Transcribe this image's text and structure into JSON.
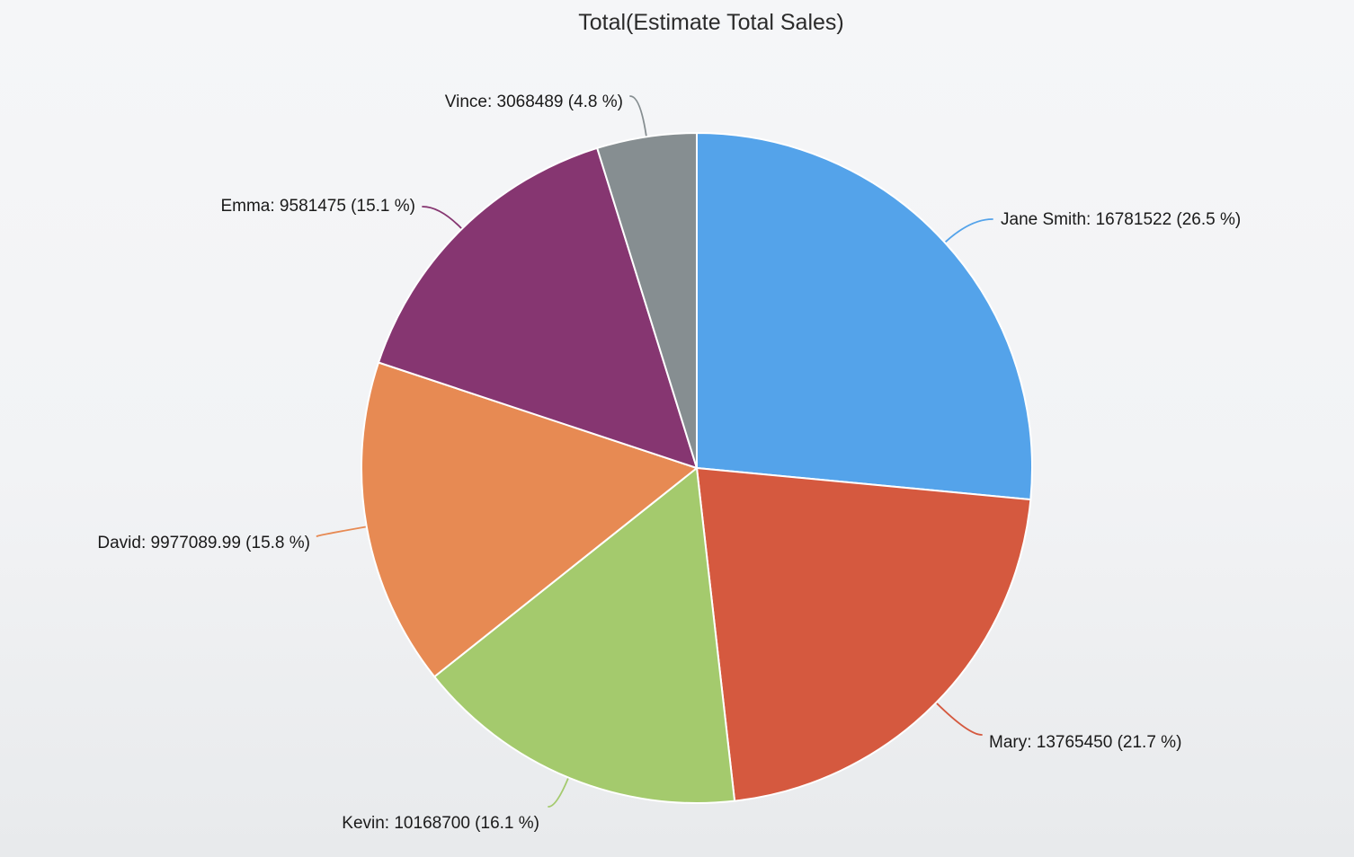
{
  "chart_data": {
    "type": "pie",
    "title": "Total(Estimate Total Sales)",
    "legend": "none",
    "direction": "clockwise",
    "start_angle_deg": 0,
    "background": "#F2F3F5",
    "slice_border_color": "#FFFFFF",
    "series": [
      {
        "name": "Jane Smith",
        "value": 16781522,
        "pct": 26.5,
        "color": "#54A3EA",
        "label": "Jane Smith: 16781522 (26.5 %)"
      },
      {
        "name": "Mary",
        "value": 13765450,
        "pct": 21.7,
        "color": "#D5593F",
        "label": "Mary: 13765450 (21.7 %)"
      },
      {
        "name": "Kevin",
        "value": 10168700,
        "pct": 16.1,
        "color": "#A4CA6D",
        "label": "Kevin: 10168700 (16.1 %)"
      },
      {
        "name": "David",
        "value": 9977089.99,
        "pct": 15.8,
        "color": "#E78A53",
        "label": "David: 9977089.99 (15.8 %)"
      },
      {
        "name": "Emma",
        "value": 9581475,
        "pct": 15.1,
        "color": "#863671",
        "label": "Emma: 9581475 (15.1 %)"
      },
      {
        "name": "Vince",
        "value": 3068489,
        "pct": 4.8,
        "color": "#868E91",
        "label": "Vince: 3068489 (4.8 %)"
      }
    ]
  }
}
